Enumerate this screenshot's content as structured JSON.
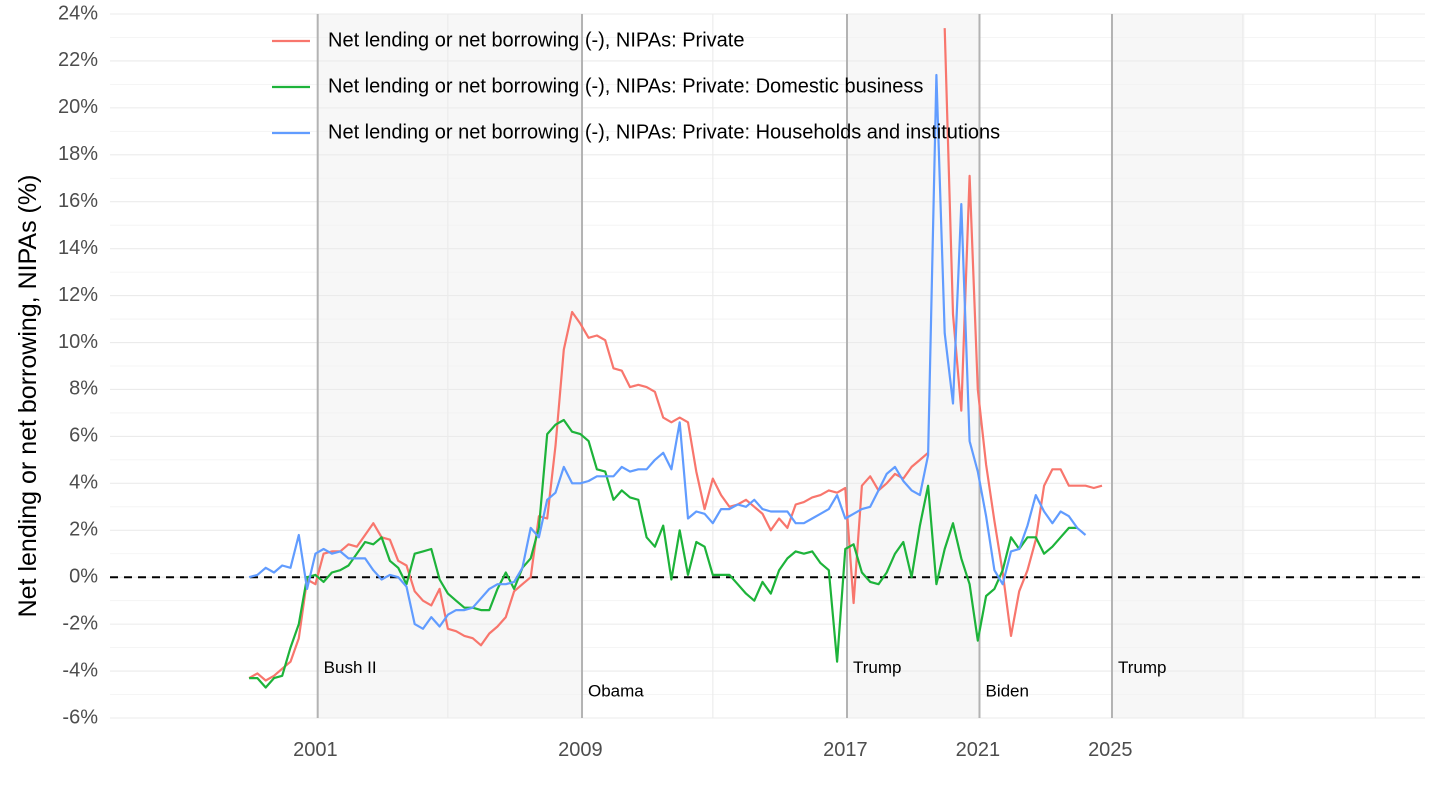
{
  "chart_data": {
    "type": "line",
    "title": "",
    "xlabel": "",
    "ylabel": "Net lending or net borrowing, NIPAs (%)",
    "xlim": [
      1994.8,
      2034.5
    ],
    "ylim": [
      -6,
      24
    ],
    "x_ticks": [
      {
        "value": 2001,
        "label": "2001"
      },
      {
        "value": 2009,
        "label": "2009"
      },
      {
        "value": 2017,
        "label": "2017"
      },
      {
        "value": 2021,
        "label": "2021"
      },
      {
        "value": 2025,
        "label": "2025"
      }
    ],
    "y_ticks": [
      {
        "value": 24,
        "label": "24%"
      },
      {
        "value": 22,
        "label": "22%"
      },
      {
        "value": 20,
        "label": "20%"
      },
      {
        "value": 18,
        "label": "18%"
      },
      {
        "value": 16,
        "label": "16%"
      },
      {
        "value": 14,
        "label": "14%"
      },
      {
        "value": 12,
        "label": "12%"
      },
      {
        "value": 10,
        "label": "10%"
      },
      {
        "value": 8,
        "label": "8%"
      },
      {
        "value": 6,
        "label": "6%"
      },
      {
        "value": 4,
        "label": "4%"
      },
      {
        "value": 2,
        "label": "2%"
      },
      {
        "value": 0,
        "label": "0%"
      },
      {
        "value": -2,
        "label": "-2%"
      },
      {
        "value": -4,
        "label": "-4%"
      },
      {
        "value": -6,
        "label": "-6%"
      }
    ],
    "grid": true,
    "legend": "top-left",
    "reference_line": {
      "y": 0,
      "style": "dashed"
    },
    "eras": [
      {
        "start": 1994.8,
        "end": 2001.07,
        "label": "",
        "shaded": false
      },
      {
        "start": 2001.07,
        "end": 2009.05,
        "label": "Bush II",
        "shaded": true
      },
      {
        "start": 2009.05,
        "end": 2017.05,
        "label": "Obama",
        "shaded": false
      },
      {
        "start": 2017.05,
        "end": 2021.05,
        "label": "Trump",
        "shaded": true
      },
      {
        "start": 2021.05,
        "end": 2025.05,
        "label": "Biden",
        "shaded": false
      },
      {
        "start": 2025.05,
        "end": 2029.05,
        "label": "Trump",
        "shaded": true
      }
    ],
    "series": [
      {
        "name": "Net lending or net borrowing (-), NIPAs: Private",
        "color": "#F8766D",
        "x": [
          1999.0,
          1999.25,
          1999.5,
          1999.75,
          2000.0,
          2000.25,
          2000.5,
          2000.75,
          2001.0,
          2001.25,
          2001.5,
          2001.75,
          2002.0,
          2002.25,
          2002.5,
          2002.75,
          2003.0,
          2003.25,
          2003.5,
          2003.75,
          2004.0,
          2004.25,
          2004.5,
          2004.75,
          2005.0,
          2005.25,
          2005.5,
          2005.75,
          2006.0,
          2006.25,
          2006.5,
          2006.75,
          2007.0,
          2007.25,
          2007.5,
          2007.75,
          2008.0,
          2008.25,
          2008.5,
          2008.75,
          2009.0,
          2009.25,
          2009.5,
          2009.75,
          2010.0,
          2010.25,
          2010.5,
          2010.75,
          2011.0,
          2011.25,
          2011.5,
          2011.75,
          2012.0,
          2012.25,
          2012.5,
          2012.75,
          2013.0,
          2013.25,
          2013.5,
          2013.75,
          2014.0,
          2014.25,
          2014.5,
          2014.75,
          2015.0,
          2015.25,
          2015.5,
          2015.75,
          2016.0,
          2016.25,
          2016.5,
          2016.75,
          2017.0,
          2017.25,
          2017.5,
          2017.75,
          2018.0,
          2018.25,
          2018.5,
          2018.75,
          2019.0,
          2019.25,
          2019.5,
          2019.75,
          2020.0,
          2020.25,
          2020.5,
          2020.75,
          2021.0,
          2021.25,
          2021.5,
          2021.75,
          2022.0,
          2022.25,
          2022.5,
          2022.75,
          2023.0,
          2023.25,
          2023.5,
          2023.75,
          2024.0,
          2024.25,
          2024.5,
          2024.75,
          2025.0
        ],
        "values": [
          -4.3,
          -4.1,
          -4.4,
          -4.2,
          -3.9,
          -3.6,
          -2.6,
          -0.1,
          -0.3,
          1.0,
          1.1,
          1.1,
          1.4,
          1.3,
          1.8,
          2.3,
          1.7,
          1.6,
          0.7,
          0.5,
          -0.6,
          -1.0,
          -1.2,
          -0.5,
          -2.2,
          -2.3,
          -2.5,
          -2.6,
          -2.9,
          -2.4,
          -2.1,
          -1.7,
          -0.6,
          -0.3,
          0.0,
          2.6,
          2.5,
          5.6,
          9.7,
          11.3,
          10.8,
          10.2,
          10.3,
          10.1,
          8.9,
          8.8,
          8.1,
          8.2,
          8.1,
          7.9,
          6.8,
          6.6,
          6.8,
          6.6,
          4.5,
          2.9,
          4.2,
          3.5,
          3.0,
          3.1,
          3.3,
          3.0,
          2.7,
          2.0,
          2.5,
          2.1,
          3.1,
          3.2,
          3.4,
          3.5,
          3.7,
          3.6,
          3.8,
          -1.1,
          3.9,
          4.3,
          3.7,
          4.0,
          4.4,
          4.2,
          4.7,
          5.0,
          5.3,
          null,
          23.4,
          11.2,
          7.1,
          17.1,
          8.0,
          4.8,
          2.4,
          0.2,
          -2.5,
          -0.6,
          0.3,
          1.6,
          3.9,
          4.6,
          4.6,
          3.9,
          3.9,
          3.9,
          3.8,
          3.9,
          null
        ]
      },
      {
        "name": "Net lending or net borrowing (-), NIPAs: Private: Domestic business",
        "color": "#1DB33A",
        "x": [
          1999.0,
          1999.25,
          1999.5,
          1999.75,
          2000.0,
          2000.25,
          2000.5,
          2000.75,
          2001.0,
          2001.25,
          2001.5,
          2001.75,
          2002.0,
          2002.25,
          2002.5,
          2002.75,
          2003.0,
          2003.25,
          2003.5,
          2003.75,
          2004.0,
          2004.25,
          2004.5,
          2004.75,
          2005.0,
          2005.25,
          2005.5,
          2005.75,
          2006.0,
          2006.25,
          2006.5,
          2006.75,
          2007.0,
          2007.25,
          2007.5,
          2007.75,
          2008.0,
          2008.25,
          2008.5,
          2008.75,
          2009.0,
          2009.25,
          2009.5,
          2009.75,
          2010.0,
          2010.25,
          2010.5,
          2010.75,
          2011.0,
          2011.25,
          2011.5,
          2011.75,
          2012.0,
          2012.25,
          2012.5,
          2012.75,
          2013.0,
          2013.25,
          2013.5,
          2013.75,
          2014.0,
          2014.25,
          2014.5,
          2014.75,
          2015.0,
          2015.25,
          2015.5,
          2015.75,
          2016.0,
          2016.25,
          2016.5,
          2016.75,
          2017.0,
          2017.25,
          2017.5,
          2017.75,
          2018.0,
          2018.25,
          2018.5,
          2018.75,
          2019.0,
          2019.25,
          2019.5,
          2019.75,
          2020.0,
          2020.25,
          2020.5,
          2020.75,
          2021.0,
          2021.25,
          2021.5,
          2021.75,
          2022.0,
          2022.25,
          2022.5,
          2022.75,
          2023.0,
          2023.25,
          2023.5,
          2023.75,
          2024.0,
          2024.25,
          2024.5,
          2024.75,
          2025.0
        ],
        "values": [
          -4.3,
          -4.3,
          -4.7,
          -4.3,
          -4.2,
          -3.0,
          -2.0,
          0.0,
          0.1,
          -0.2,
          0.2,
          0.3,
          0.5,
          1.0,
          1.5,
          1.4,
          1.7,
          0.7,
          0.4,
          -0.3,
          1.0,
          1.1,
          1.2,
          -0.1,
          -0.7,
          -1.0,
          -1.3,
          -1.3,
          -1.4,
          -1.4,
          -0.5,
          0.2,
          -0.5,
          0.4,
          0.8,
          2.1,
          6.1,
          6.5,
          6.7,
          6.2,
          6.1,
          5.8,
          4.6,
          4.5,
          3.3,
          3.7,
          3.4,
          3.3,
          1.7,
          1.3,
          2.2,
          -0.1,
          2.0,
          0.1,
          1.5,
          1.3,
          0.1,
          0.1,
          0.1,
          -0.3,
          -0.7,
          -1.0,
          -0.2,
          -0.7,
          0.3,
          0.8,
          1.1,
          1.0,
          1.1,
          0.6,
          0.3,
          -3.6,
          1.2,
          1.4,
          0.2,
          -0.2,
          -0.3,
          0.2,
          1.0,
          1.5,
          0.0,
          2.2,
          3.9,
          -0.3,
          1.2,
          2.3,
          0.8,
          -0.3,
          -2.7,
          -0.8,
          -0.5,
          0.3,
          1.7,
          1.2,
          1.7,
          1.7,
          1.0,
          1.3,
          1.7,
          2.1,
          2.1,
          null,
          null,
          null,
          null
        ],
        "note_x_offset": 0
      },
      {
        "name": "Net lending or net borrowing (-), NIPAs: Private: Households and institutions",
        "color": "#619CFF",
        "x": [
          1999.0,
          1999.25,
          1999.5,
          1999.75,
          2000.0,
          2000.25,
          2000.5,
          2000.75,
          2001.0,
          2001.25,
          2001.5,
          2001.75,
          2002.0,
          2002.25,
          2002.5,
          2002.75,
          2003.0,
          2003.25,
          2003.5,
          2003.75,
          2004.0,
          2004.25,
          2004.5,
          2004.75,
          2005.0,
          2005.25,
          2005.5,
          2005.75,
          2006.0,
          2006.25,
          2006.5,
          2006.75,
          2007.0,
          2007.25,
          2007.5,
          2007.75,
          2008.0,
          2008.25,
          2008.5,
          2008.75,
          2009.0,
          2009.25,
          2009.5,
          2009.75,
          2010.0,
          2010.25,
          2010.5,
          2010.75,
          2011.0,
          2011.25,
          2011.5,
          2011.75,
          2012.0,
          2012.25,
          2012.5,
          2012.75,
          2013.0,
          2013.25,
          2013.5,
          2013.75,
          2014.0,
          2014.25,
          2014.5,
          2014.75,
          2015.0,
          2015.25,
          2015.5,
          2015.75,
          2016.0,
          2016.25,
          2016.5,
          2016.75,
          2017.0,
          2017.25,
          2017.5,
          2017.75,
          2018.0,
          2018.25,
          2018.5,
          2018.75,
          2019.0,
          2019.25,
          2019.5,
          2019.75,
          2020.0,
          2020.25,
          2020.5,
          2020.75,
          2021.0,
          2021.25,
          2021.5,
          2021.75,
          2022.0,
          2022.25,
          2022.5,
          2022.75,
          2023.0,
          2023.25,
          2023.5,
          2023.75,
          2024.0,
          2024.25,
          2024.5,
          2024.75,
          2025.0
        ],
        "values": [
          0.0,
          0.1,
          0.4,
          0.2,
          0.5,
          0.4,
          1.8,
          -0.5,
          1.0,
          1.2,
          1.0,
          1.1,
          0.8,
          0.8,
          0.8,
          0.3,
          -0.1,
          0.1,
          0.0,
          -0.4,
          -2.0,
          -2.2,
          -1.7,
          -2.1,
          -1.6,
          -1.4,
          -1.4,
          -1.3,
          -0.9,
          -0.5,
          -0.3,
          -0.3,
          -0.2,
          0.4,
          2.1,
          1.7,
          3.3,
          3.6,
          4.7,
          4.0,
          4.0,
          4.1,
          4.3,
          4.3,
          4.3,
          4.7,
          4.5,
          4.6,
          4.6,
          5.0,
          5.3,
          4.6,
          6.6,
          2.5,
          2.8,
          2.7,
          2.3,
          2.9,
          2.9,
          3.1,
          3.0,
          3.3,
          2.9,
          2.8,
          2.8,
          2.8,
          2.3,
          2.3,
          2.5,
          2.7,
          2.9,
          3.5,
          2.5,
          2.7,
          2.9,
          3.0,
          3.7,
          4.4,
          4.7,
          4.1,
          3.7,
          3.5,
          5.2,
          21.4,
          10.4,
          7.4,
          15.9,
          5.8,
          4.5,
          2.6,
          0.3,
          -0.3,
          1.1,
          1.2,
          2.2,
          3.5,
          2.8,
          2.3,
          2.8,
          2.6,
          2.1,
          1.8,
          null,
          null,
          null
        ]
      }
    ]
  }
}
